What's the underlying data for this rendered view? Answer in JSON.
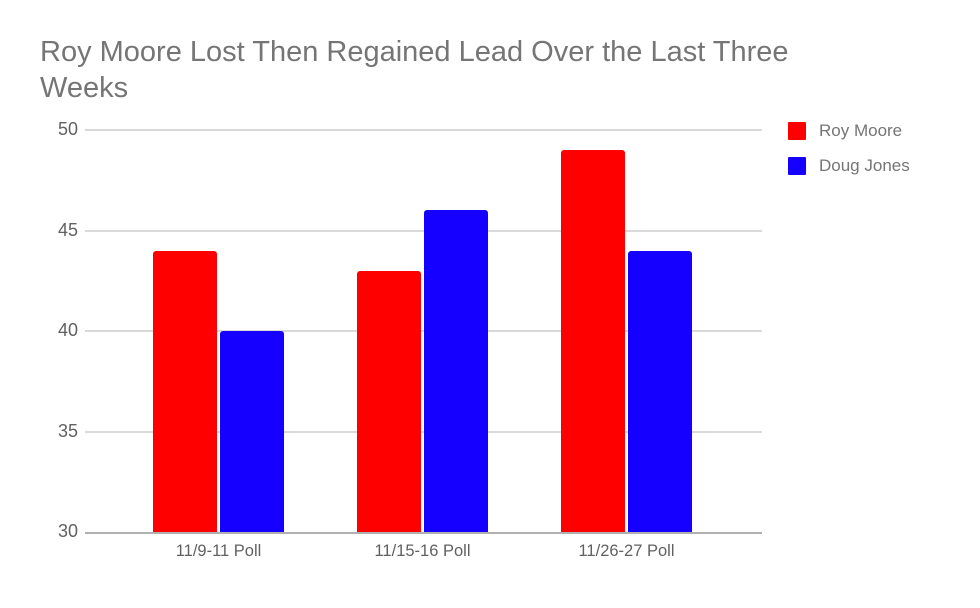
{
  "chart_data": {
    "type": "bar",
    "title": "Roy Moore Lost Then Regained Lead Over the Last Three Weeks",
    "categories": [
      "11/9-11 Poll",
      "11/15-16 Poll",
      "11/26-27 Poll"
    ],
    "series": [
      {
        "name": "Roy Moore",
        "color": "#ff0000",
        "values": [
          44,
          43,
          49
        ]
      },
      {
        "name": "Doug Jones",
        "color": "#1500ff",
        "values": [
          40,
          46,
          44
        ]
      }
    ],
    "ylim": [
      30,
      50
    ],
    "yticks": [
      30,
      35,
      40,
      45,
      50
    ],
    "xlabel": "",
    "ylabel": "",
    "grid": true,
    "legend_position": "right",
    "colors": {
      "title_text": "#757575",
      "tick_text": "#616161",
      "legend_text": "#757575",
      "gridline": "#d9d9d9",
      "axis_line": "#b0b0b0",
      "background": "#ffffff"
    }
  }
}
